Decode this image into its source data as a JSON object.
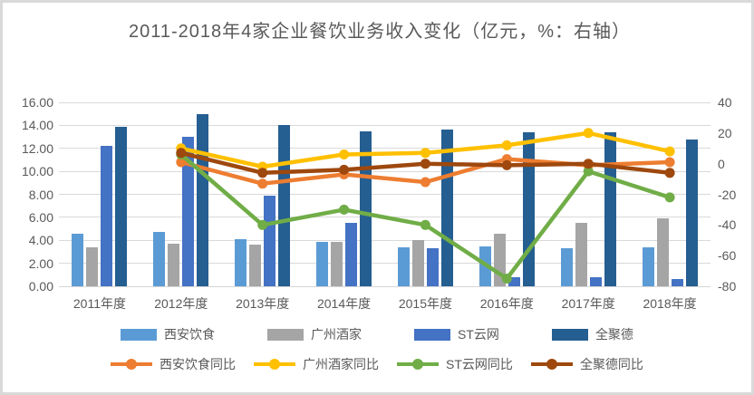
{
  "chart_data": {
    "type": "combo-bar-line",
    "title": "2011-2018年4家企业餐饮业务收入变化（亿元，%：右轴）",
    "categories": [
      "2011年度",
      "2012年度",
      "2013年度",
      "2014年度",
      "2015年度",
      "2016年度",
      "2017年度",
      "2018年度"
    ],
    "left_axis": {
      "min": 0,
      "max": 16,
      "step": 2,
      "tick_labels": [
        "16.00",
        "14.00",
        "12.00",
        "10.00",
        "8.00",
        "6.00",
        "4.00",
        "2.00",
        "0.00"
      ]
    },
    "right_axis": {
      "min": -80,
      "max": 40,
      "step": 20,
      "tick_labels": [
        "40",
        "20",
        "0",
        "-20",
        "-40",
        "-60",
        "-80"
      ]
    },
    "grid": true,
    "legend_position": "bottom",
    "bar_series": [
      {
        "id": "xian-yinshi",
        "name": "西安饮食",
        "color": "#5B9BD5",
        "values": [
          4.6,
          4.7,
          4.1,
          3.9,
          3.4,
          3.5,
          3.3,
          3.4
        ]
      },
      {
        "id": "guangzhou-jiujia",
        "name": "广州酒家",
        "color": "#A5A5A5",
        "values": [
          3.4,
          3.7,
          3.6,
          3.9,
          4.0,
          4.6,
          5.5,
          5.9
        ]
      },
      {
        "id": "st-yunwang",
        "name": "ST云网",
        "color": "#4472C4",
        "values": [
          12.2,
          13.0,
          7.9,
          5.5,
          3.3,
          0.8,
          0.8,
          0.6
        ]
      },
      {
        "id": "quanjude",
        "name": "全聚德",
        "color": "#255E91",
        "values": [
          13.9,
          15.0,
          14.0,
          13.5,
          13.6,
          13.4,
          13.4,
          12.8
        ]
      }
    ],
    "line_series": [
      {
        "id": "xian-yinshi-yoy",
        "name": "西安饮食同比",
        "color": "#ED7D31",
        "values": [
          null,
          1,
          -13,
          -7,
          -12,
          3,
          -1,
          1
        ]
      },
      {
        "id": "guangzhou-jiujia-yoy",
        "name": "广州酒家同比",
        "color": "#FFC000",
        "values": [
          null,
          10,
          -2,
          6,
          7,
          12,
          20,
          8
        ]
      },
      {
        "id": "st-yunwang-yoy",
        "name": "ST云网同比",
        "color": "#70AD47",
        "values": [
          null,
          6,
          -40,
          -30,
          -40,
          -75,
          -5,
          -22
        ]
      },
      {
        "id": "quanjude-yoy",
        "name": "全聚德同比",
        "color": "#9E480E",
        "values": [
          null,
          7,
          -6,
          -4,
          0,
          -1,
          0,
          -6
        ]
      }
    ]
  }
}
